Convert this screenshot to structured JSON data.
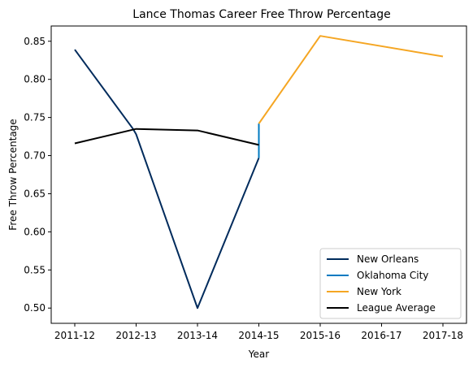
{
  "chart_data": {
    "type": "line",
    "title": "Lance Thomas Career Free Throw Percentage",
    "xlabel": "Year",
    "ylabel": "Free Throw Percentage",
    "categories": [
      "2011-12",
      "2012-13",
      "2013-14",
      "2014-15",
      "2015-16",
      "2016-17",
      "2017-18"
    ],
    "ylim": [
      0.48,
      0.87
    ],
    "yticks": [
      0.5,
      0.55,
      0.6,
      0.65,
      0.7,
      0.75,
      0.8,
      0.85
    ],
    "ytick_labels": [
      "0.50",
      "0.55",
      "0.60",
      "0.65",
      "0.70",
      "0.75",
      "0.80",
      "0.85"
    ],
    "grid": false,
    "legend_position": "bottom-right",
    "series": [
      {
        "name": "New Orleans",
        "color": "#002B5C",
        "points": [
          {
            "x": 0,
            "y": 0.839
          },
          {
            "x": 0.95,
            "y": 0.735
          },
          {
            "x": 1,
            "y": 0.728
          },
          {
            "x": 2,
            "y": 0.5
          },
          {
            "x": 3,
            "y": 0.697
          }
        ]
      },
      {
        "name": "Oklahoma City",
        "color": "#007AC1",
        "points": [
          {
            "x": 3,
            "y": 0.697
          },
          {
            "x": 3,
            "y": 0.742
          }
        ]
      },
      {
        "name": "New York",
        "color": "#F5A623",
        "points": [
          {
            "x": 3,
            "y": 0.742
          },
          {
            "x": 4,
            "y": 0.857
          },
          {
            "x": 6,
            "y": 0.83
          }
        ]
      },
      {
        "name": "League Average",
        "color": "#000000",
        "points": [
          {
            "x": 0,
            "y": 0.716
          },
          {
            "x": 1,
            "y": 0.735
          },
          {
            "x": 2,
            "y": 0.733
          },
          {
            "x": 3,
            "y": 0.714
          }
        ]
      }
    ]
  }
}
